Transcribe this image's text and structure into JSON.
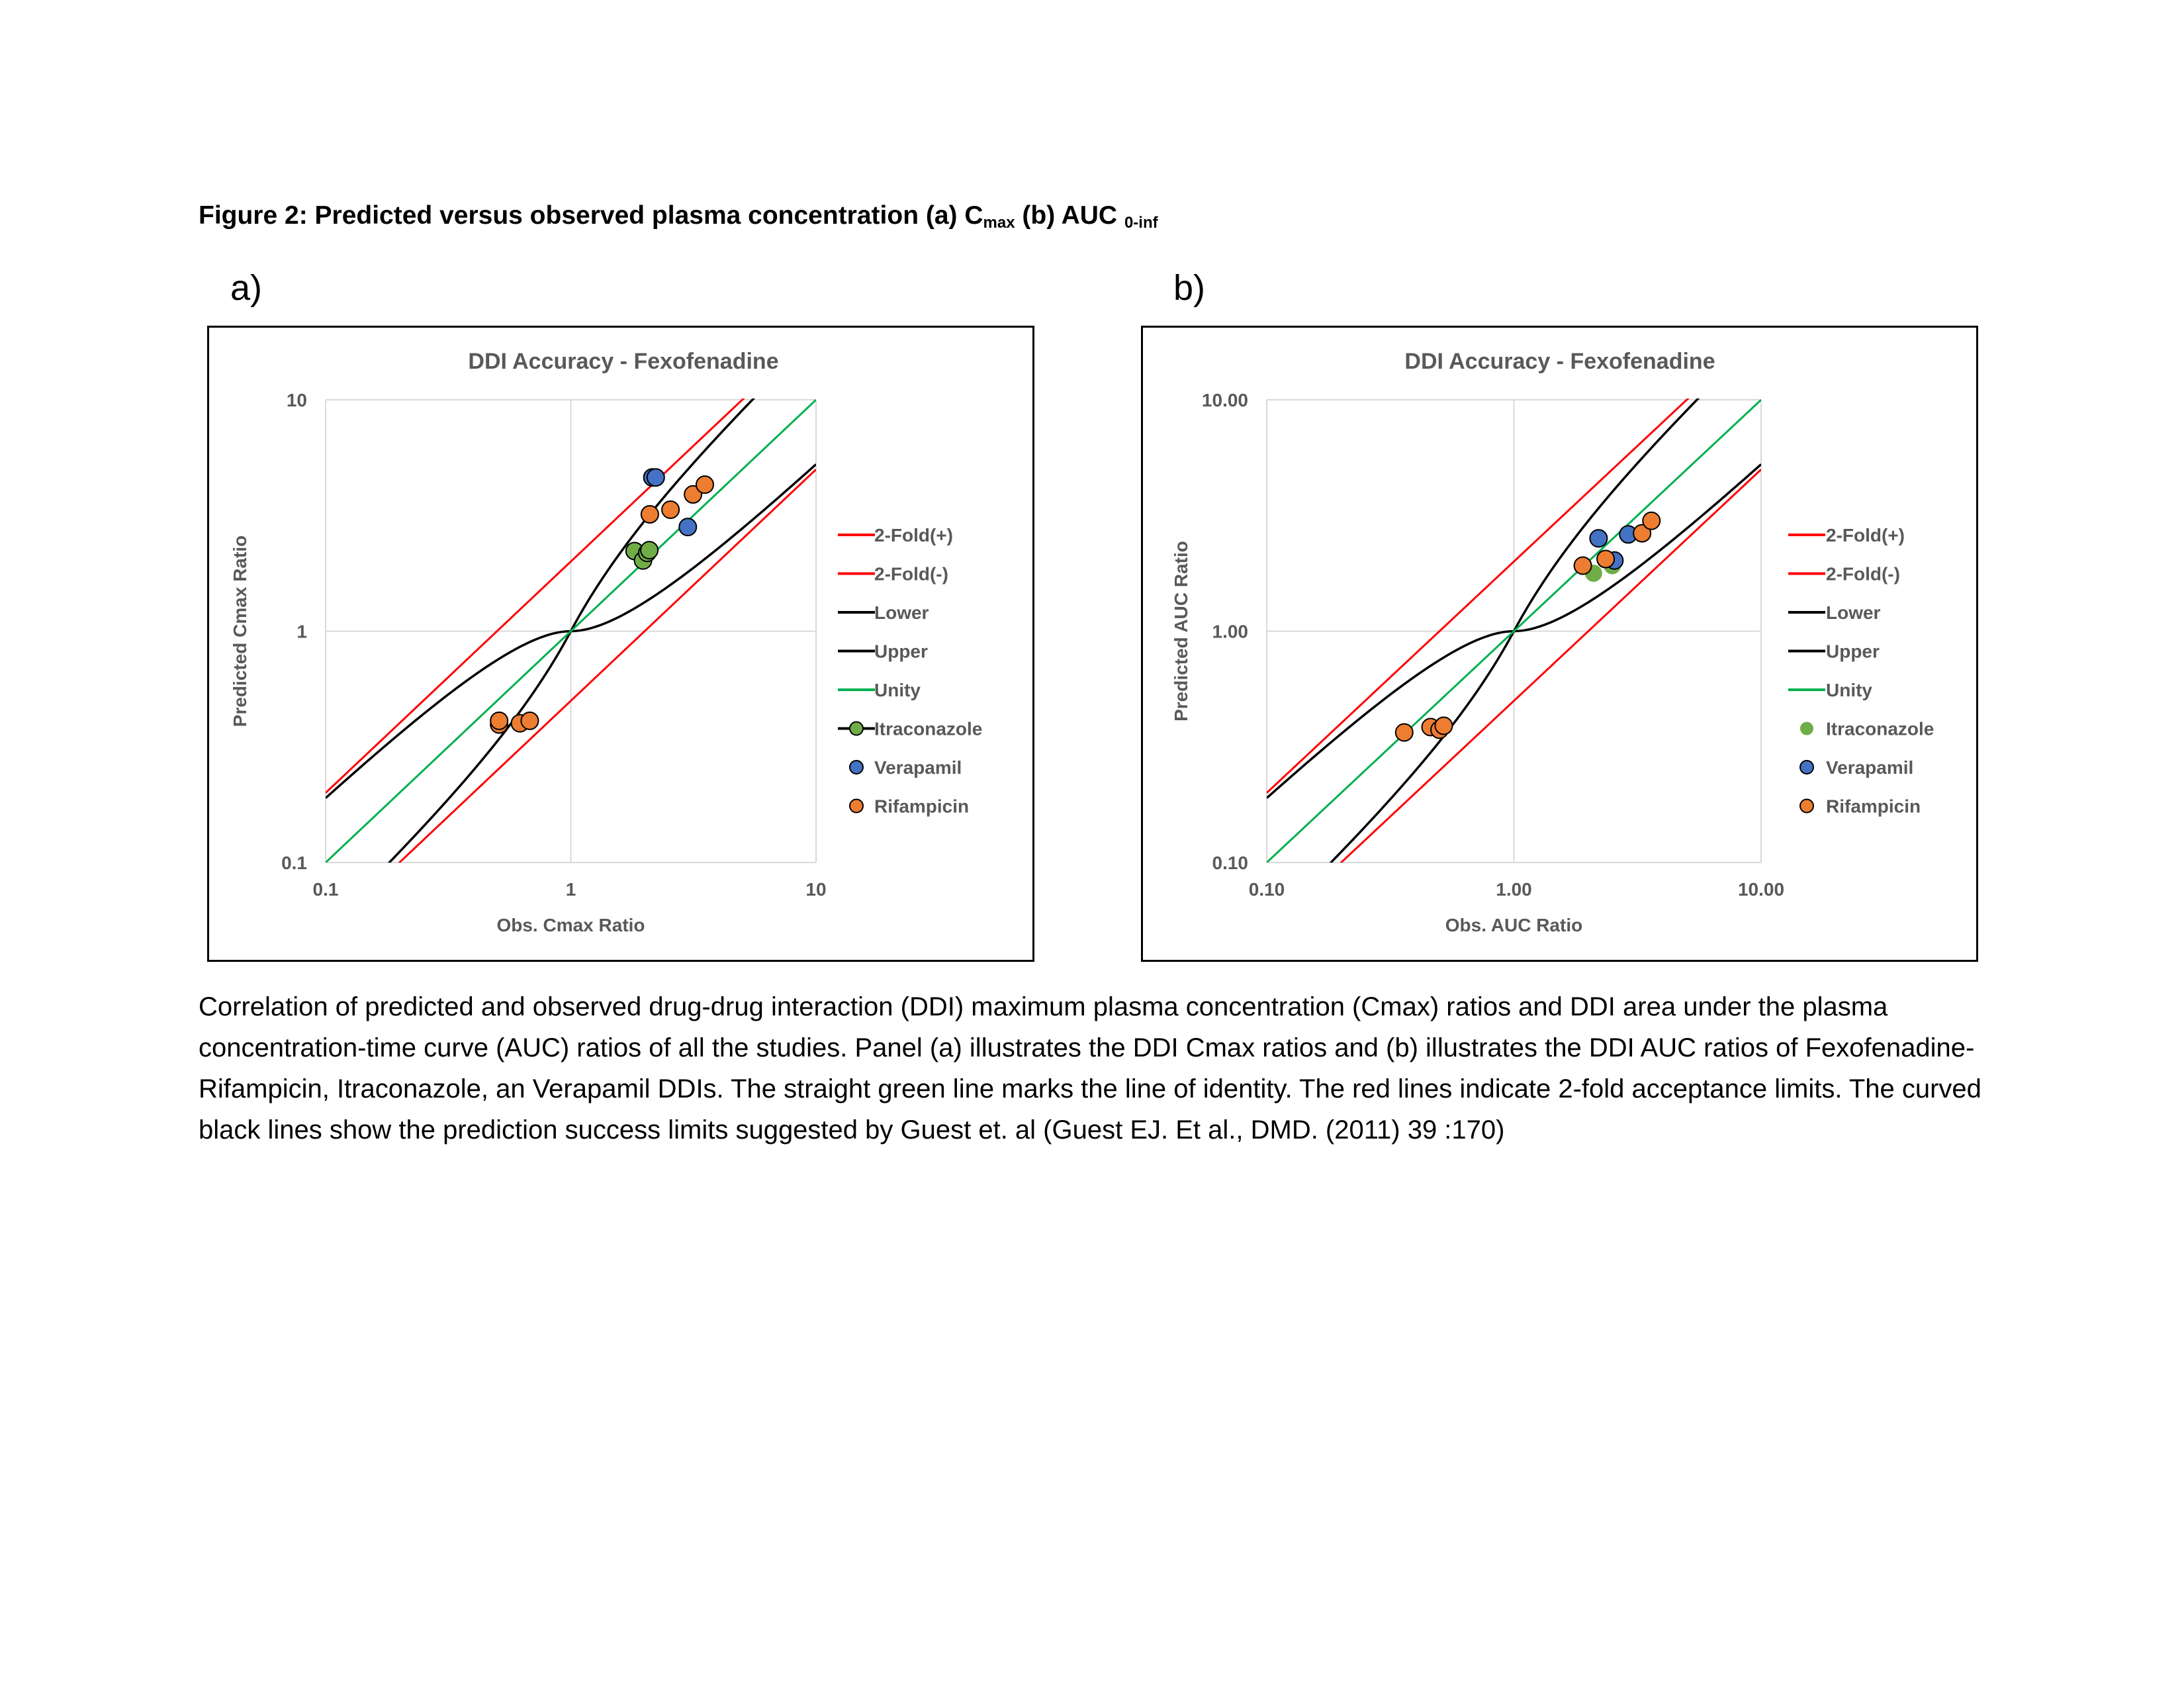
{
  "figure": {
    "title_main": "Figure 2: Predicted versus observed plasma concentration (a) C",
    "title_sub1": "max",
    "title_mid": " (b) AUC ",
    "title_sub2": "0-inf",
    "panel_a_label": "a)",
    "panel_b_label": "b)",
    "caption": "Correlation of predicted and observed drug-drug interaction (DDI) maximum plasma concentration (Cmax) ratios and DDI area under the plasma concentration-time curve (AUC) ratios of all the studies. Panel (a) illustrates the DDI Cmax ratios and (b) illustrates the DDI AUC ratios of Fexofenadine- Rifampicin, Itraconazole, an Verapamil DDIs. The straight green line marks the line of identity. The red lines indicate 2-fold acceptance limits. The curved black lines show the prediction success limits suggested by Guest et. al (Guest EJ. Et al., DMD. (2011) 39 :170)"
  },
  "colors": {
    "two_fold": "#ff0000",
    "guest": "#000000",
    "unity": "#00b050",
    "itraconazole": "#70ad47",
    "verapamil": "#4472c4",
    "rifampicin": "#ed7d31",
    "grid": "#d9d9d9",
    "axis_text": "#595959"
  },
  "chart_data": [
    {
      "type": "scatter",
      "title": "DDI Accuracy - Fexofenadine",
      "xlabel": "Obs.  Cmax Ratio",
      "ylabel": "Predicted Cmax  Ratio",
      "xscale": "log",
      "yscale": "log",
      "xlim": [
        0.1,
        10
      ],
      "ylim": [
        0.1,
        10
      ],
      "x_tick_labels": [
        "0.1",
        "1",
        "10"
      ],
      "y_tick_labels": [
        "0.1",
        "1",
        "10"
      ],
      "grid": true,
      "legend_position": "right",
      "legend": [
        "2-Fold(+)",
        "2-Fold(-)",
        "Lower",
        "Upper",
        "Unity",
        "Itraconazole",
        "Verapamil",
        "Rifampicin"
      ],
      "itraconazole_marker_line": true,
      "series": [
        {
          "name": "Itraconazole",
          "x": [
            1.82,
            1.97,
            2.05,
            2.09
          ],
          "y": [
            2.22,
            2.02,
            2.18,
            2.24
          ]
        },
        {
          "name": "Verapamil",
          "x": [
            2.15,
            2.22,
            3.0
          ],
          "y": [
            4.62,
            4.62,
            2.82
          ]
        },
        {
          "name": "Rifampicin",
          "x": [
            0.51,
            0.51,
            0.62,
            0.68,
            2.1,
            2.55,
            3.15,
            3.52
          ],
          "y": [
            0.395,
            0.41,
            0.4,
            0.41,
            3.2,
            3.35,
            3.9,
            4.3
          ]
        }
      ]
    },
    {
      "type": "scatter",
      "title": "DDI Accuracy - Fexofenadine",
      "xlabel": "Obs. AUC Ratio",
      "ylabel": "Predicted AUC Ratio",
      "xscale": "log",
      "yscale": "log",
      "xlim": [
        0.1,
        10
      ],
      "ylim": [
        0.1,
        10
      ],
      "x_tick_labels": [
        "0.10",
        "1.00",
        "10.00"
      ],
      "y_tick_labels": [
        "0.10",
        "1.00",
        "10.00"
      ],
      "grid": true,
      "legend_position": "right",
      "legend": [
        "2-Fold(+)",
        "2-Fold(-)",
        "Lower",
        "Upper",
        "Unity",
        "Itraconazole",
        "Verapamil",
        "Rifampicin"
      ],
      "itraconazole_marker_line": false,
      "series": [
        {
          "name": "Itraconazole",
          "x": [
            2.1,
            2.5,
            2.55
          ],
          "y": [
            1.78,
            1.92,
            2.0
          ]
        },
        {
          "name": "Verapamil",
          "x": [
            2.2,
            2.55,
            2.9
          ],
          "y": [
            2.52,
            2.02,
            2.62
          ]
        },
        {
          "name": "Rifampicin",
          "x": [
            0.36,
            0.46,
            0.5,
            0.52,
            1.9,
            2.35,
            3.3,
            3.6
          ],
          "y": [
            0.365,
            0.385,
            0.375,
            0.39,
            1.92,
            2.05,
            2.65,
            3.0
          ]
        }
      ]
    }
  ]
}
